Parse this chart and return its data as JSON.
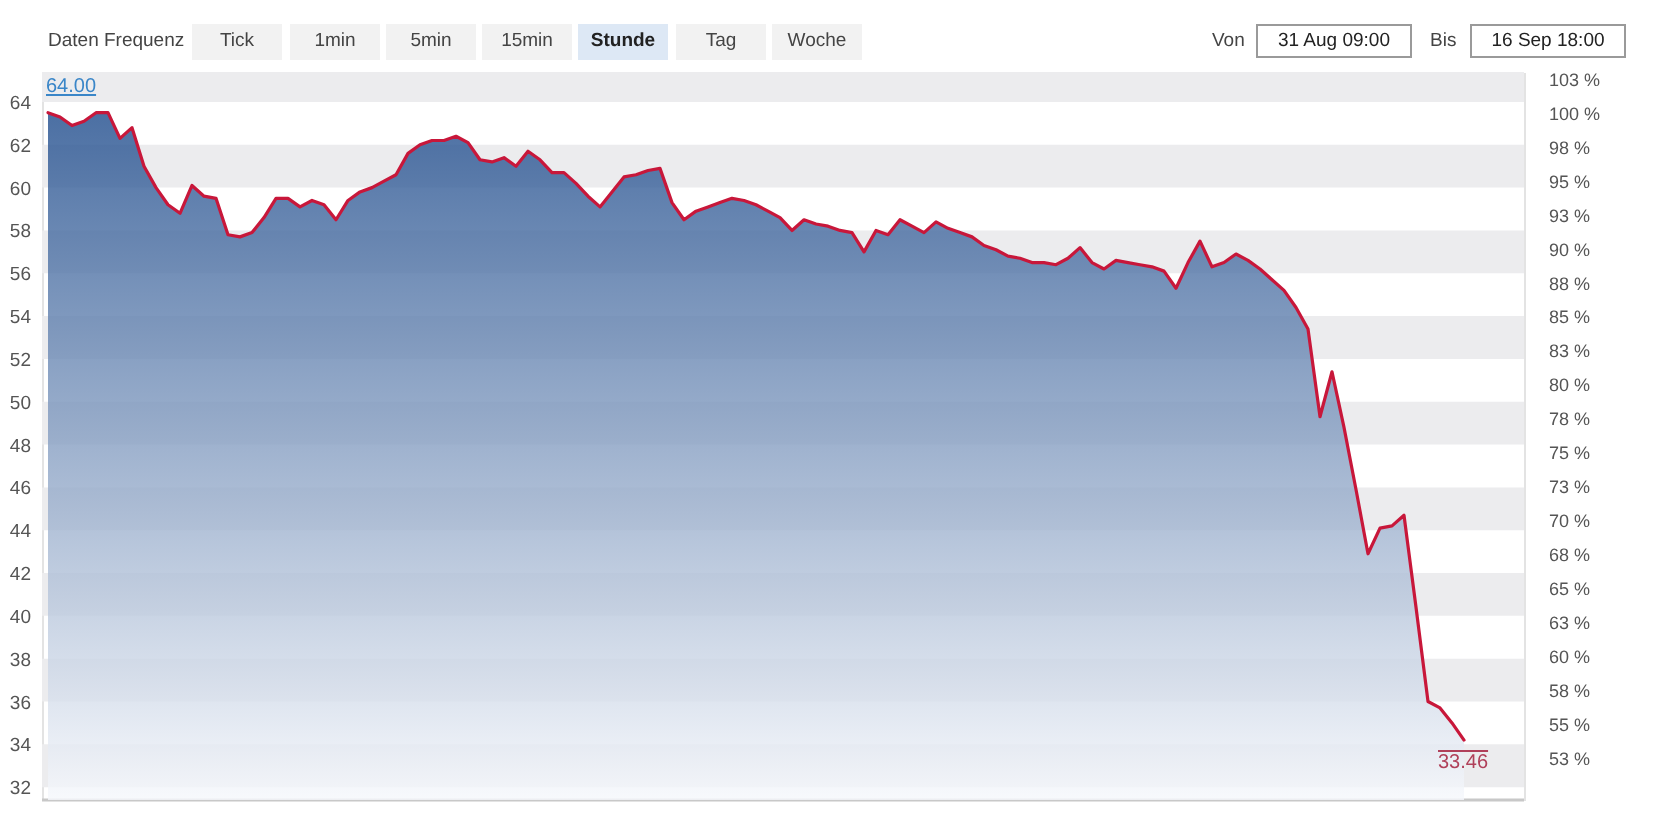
{
  "chart_data": {
    "type": "area",
    "categories": [
      null,
      null,
      null,
      null,
      null,
      null,
      null,
      null,
      null,
      null,
      null,
      null,
      null,
      null,
      null,
      null,
      null,
      null,
      null,
      null,
      null,
      null,
      null,
      null,
      null,
      null,
      null,
      null,
      null,
      null,
      null,
      null,
      null,
      null,
      null,
      null,
      null,
      null,
      null,
      null,
      null,
      null,
      null,
      null,
      null,
      null,
      null,
      null,
      null,
      null,
      null,
      null,
      null,
      null,
      null,
      null,
      null,
      null,
      null,
      null,
      null,
      null,
      null,
      null,
      null,
      null,
      null,
      null,
      null,
      null,
      null,
      null,
      null,
      null,
      null,
      null,
      null,
      null,
      null,
      null,
      null,
      null,
      null,
      null,
      null,
      null,
      null,
      null,
      null,
      null,
      null,
      null,
      null,
      null,
      null,
      null,
      null,
      null,
      null,
      null,
      null,
      null,
      null,
      null,
      null,
      null,
      null,
      null,
      null,
      null,
      null,
      null,
      null,
      null,
      null,
      null,
      null,
      null,
      null
    ],
    "values": [
      63.5,
      63.3,
      62.9,
      63.1,
      63.5,
      63.5,
      62.3,
      62.8,
      61.0,
      60.0,
      59.2,
      58.8,
      60.1,
      59.6,
      59.5,
      57.8,
      57.7,
      57.9,
      58.6,
      59.5,
      59.5,
      59.1,
      59.4,
      59.2,
      58.5,
      59.4,
      59.8,
      60.0,
      60.3,
      60.6,
      61.6,
      62.0,
      62.2,
      62.2,
      62.4,
      62.1,
      61.3,
      61.2,
      61.4,
      61.0,
      61.7,
      61.3,
      60.7,
      60.7,
      60.2,
      59.6,
      59.1,
      59.8,
      60.5,
      60.6,
      60.8,
      60.9,
      59.3,
      58.5,
      58.9,
      59.1,
      59.3,
      59.5,
      59.4,
      59.2,
      58.9,
      58.6,
      58.0,
      58.5,
      58.3,
      58.2,
      58.0,
      57.9,
      57.0,
      58.0,
      57.8,
      58.5,
      58.2,
      57.9,
      58.4,
      58.1,
      57.9,
      57.7,
      57.3,
      57.1,
      56.8,
      56.7,
      56.5,
      56.5,
      56.4,
      56.7,
      57.2,
      56.5,
      56.2,
      56.6,
      56.5,
      56.4,
      56.3,
      56.1,
      55.3,
      56.5,
      57.5,
      56.3,
      56.5,
      56.9,
      56.6,
      56.2,
      55.7,
      55.2,
      54.4,
      53.4,
      49.3,
      51.4,
      48.8,
      45.9,
      42.9,
      44.1,
      44.2,
      44.7,
      40.4,
      36.0,
      35.7,
      35.0,
      34.2
    ],
    "color": "#c8173a",
    "ylim": [
      31.4,
      65.4
    ],
    "yticks": [
      32,
      34,
      36,
      38,
      40,
      42,
      44,
      46,
      48,
      50,
      52,
      54,
      56,
      58,
      60,
      62,
      64
    ],
    "y2lim": [
      49.4,
      103.0
    ],
    "y2ticks": [
      {
        "value": 52.5,
        "label": "53 %"
      },
      {
        "value": 55,
        "label": "55 %"
      },
      {
        "value": 57.5,
        "label": "58 %"
      },
      {
        "value": 60,
        "label": "60 %"
      },
      {
        "value": 62.5,
        "label": "63 %"
      },
      {
        "value": 65,
        "label": "65 %"
      },
      {
        "value": 67.5,
        "label": "68 %"
      },
      {
        "value": 70,
        "label": "70 %"
      },
      {
        "value": 72.5,
        "label": "73 %"
      },
      {
        "value": 75,
        "label": "75 %"
      },
      {
        "value": 77.5,
        "label": "78 %"
      },
      {
        "value": 80,
        "label": "80 %"
      },
      {
        "value": 82.5,
        "label": "83 %"
      },
      {
        "value": 85,
        "label": "85 %"
      },
      {
        "value": 87.5,
        "label": "88 %"
      },
      {
        "value": 90,
        "label": "90 %"
      },
      {
        "value": 92.5,
        "label": "93 %"
      },
      {
        "value": 95,
        "label": "95 %"
      },
      {
        "value": 97.5,
        "label": "98 %"
      },
      {
        "value": 100,
        "label": "100 %"
      },
      {
        "value": 102.5,
        "label": "103 %"
      }
    ],
    "bands": [
      {
        "axis": "y",
        "from": 32,
        "to": 34,
        "color": "#ececee"
      },
      {
        "axis": "y",
        "from": 36,
        "to": 38,
        "color": "#ececee"
      },
      {
        "axis": "y",
        "from": 40,
        "to": 42,
        "color": "#ececee"
      },
      {
        "axis": "y",
        "from": 44,
        "to": 46,
        "color": "#ececee"
      },
      {
        "axis": "y",
        "from": 48,
        "to": 50,
        "color": "#ececee"
      },
      {
        "axis": "y",
        "from": 52,
        "to": 54,
        "color": "#ececee"
      },
      {
        "axis": "y",
        "from": 56,
        "to": 58,
        "color": "#ececee"
      },
      {
        "axis": "y",
        "from": 60,
        "to": 62,
        "color": "#ececee"
      },
      {
        "axis": "y",
        "from": 64,
        "to": 65.4,
        "color": "#ececee"
      }
    ],
    "annotations": [
      "Daten Frequenz",
      "Tick",
      "1min",
      "5min",
      "15min",
      "Stunde",
      "Tag",
      "Woche",
      "Von",
      "31 Aug 09:00",
      "Bis",
      "16 Sep 18:00",
      "64.00",
      "33.46"
    ]
  }
}
